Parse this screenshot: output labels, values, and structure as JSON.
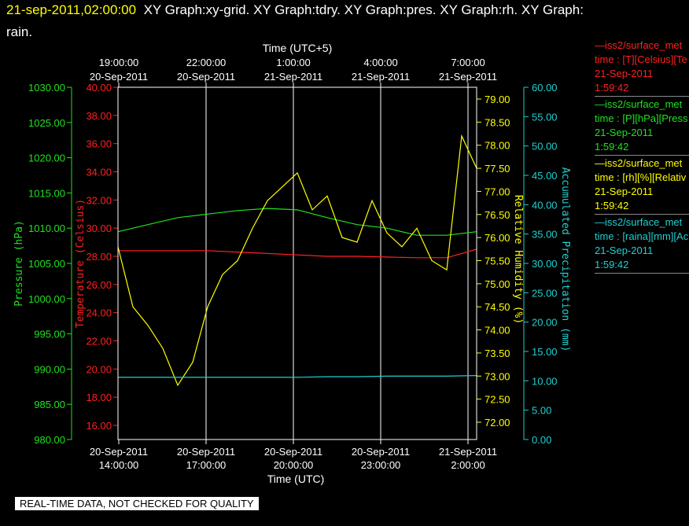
{
  "page": {
    "timestamp": "21-sep-2011,02:00:00",
    "title_rest": "XY Graph:xy-grid.  XY Graph:tdry.  XY Graph:pres.  XY Graph:rh.  XY Graph:",
    "title_wrap": "rain.",
    "quality_note": "REAL-TIME DATA, NOT CHECKED FOR QUALITY"
  },
  "legend": [
    {
      "name": "legend-temperature",
      "color": "#ff2020",
      "lines": [
        "—iss2/surface_met",
        "time : [T][Celsius][Te",
        "21-Sep-2011",
        "1:59:42"
      ]
    },
    {
      "name": "legend-pressure",
      "color": "#20e020",
      "lines": [
        "—iss2/surface_met",
        "time : [P][hPa][Press",
        "21-Sep-2011",
        "1:59:42"
      ]
    },
    {
      "name": "legend-humidity",
      "color": "#ffff00",
      "lines": [
        "—iss2/surface_met",
        "time : [rh][%][Relativ",
        "21-Sep-2011",
        "1:59:42"
      ]
    },
    {
      "name": "legend-precip",
      "color": "#20d0d0",
      "lines": [
        "—iss2/surface_met",
        "time : [raina][mm][Ac",
        "21-Sep-2011",
        "1:59:42"
      ]
    }
  ],
  "chart_data": {
    "type": "line",
    "grid": "vertical only",
    "x_bottom_label": "Time (UTC)",
    "x_top_label": "Time (UTC+5)",
    "x_range_hours_utc": [
      0,
      12
    ],
    "x_ticks_bottom": [
      {
        "date": "20-Sep-2011",
        "time": "14:00:00"
      },
      {
        "date": "20-Sep-2011",
        "time": "17:00:00"
      },
      {
        "date": "20-Sep-2011",
        "time": "20:00:00"
      },
      {
        "date": "20-Sep-2011",
        "time": "23:00:00"
      },
      {
        "date": "21-Sep-2011",
        "time": "2:00:00"
      }
    ],
    "x_ticks_top": [
      {
        "time": "19:00:00",
        "date": "20-Sep-2011"
      },
      {
        "time": "22:00:00",
        "date": "20-Sep-2011"
      },
      {
        "time": "1:00:00",
        "date": "21-Sep-2011"
      },
      {
        "time": "4:00:00",
        "date": "21-Sep-2011"
      },
      {
        "time": "7:00:00",
        "date": "21-Sep-2011"
      }
    ],
    "axes": [
      {
        "id": "pressure",
        "label": "Pressure (hPa)",
        "color": "#20e020",
        "range": [
          980,
          1030
        ],
        "ticks": [
          "980.00",
          "985.00",
          "990.00",
          "995.00",
          "1000.00",
          "1005.00",
          "1010.00",
          "1015.00",
          "1020.00",
          "1025.00",
          "1030.00"
        ]
      },
      {
        "id": "temperature",
        "label": "Temperature (Celsius)",
        "color": "#ff2020",
        "range": [
          15,
          40
        ],
        "ticks": [
          "16.00",
          "18.00",
          "20.00",
          "22.00",
          "24.00",
          "26.00",
          "28.00",
          "30.00",
          "32.00",
          "34.00",
          "36.00",
          "38.00",
          "40.00"
        ]
      },
      {
        "id": "humidity",
        "label": "Relative Humidity (%)",
        "color": "#ffff00",
        "range": [
          71.8,
          79.3
        ],
        "ticks": [
          "72.00",
          "72.50",
          "73.00",
          "73.50",
          "74.00",
          "74.50",
          "75.00",
          "75.50",
          "76.00",
          "76.50",
          "77.00",
          "77.50",
          "78.00",
          "78.50",
          "79.00"
        ]
      },
      {
        "id": "precip",
        "label": "Accumulated Precipitation (mm)",
        "color": "#20d0d0",
        "range": [
          0,
          60
        ],
        "ticks": [
          "0.00",
          "5.00",
          "10.00",
          "15.00",
          "20.00",
          "25.00",
          "30.00",
          "35.00",
          "40.00",
          "45.00",
          "50.00",
          "55.00",
          "60.00"
        ]
      }
    ],
    "series": [
      {
        "axis": "pressure",
        "color": "#20e020",
        "x": [
          0,
          1,
          2,
          3,
          4,
          5,
          6,
          7,
          8,
          9,
          10,
          11,
          12
        ],
        "y": [
          1009.5,
          1010.5,
          1011.5,
          1012,
          1012.5,
          1012.8,
          1012.6,
          1011.5,
          1010.5,
          1010,
          1009,
          1009,
          1009.5
        ]
      },
      {
        "axis": "temperature",
        "color": "#ff2020",
        "x": [
          0,
          1,
          2,
          3,
          4,
          5,
          6,
          7,
          8,
          9,
          10,
          11,
          12
        ],
        "y": [
          28.4,
          28.4,
          28.4,
          28.4,
          28.3,
          28.2,
          28.1,
          28.0,
          28.0,
          27.95,
          27.9,
          27.9,
          28.5
        ]
      },
      {
        "axis": "humidity",
        "color": "#ffff00",
        "x": [
          0,
          0.5,
          1,
          1.5,
          2,
          2.5,
          3,
          3.5,
          4,
          4.5,
          5,
          5.5,
          6,
          6.5,
          7,
          7.5,
          8,
          8.5,
          9,
          9.5,
          10,
          10.5,
          11,
          11.5,
          12
        ],
        "y": [
          75.8,
          74.5,
          74.1,
          73.6,
          72.8,
          73.3,
          74.5,
          75.2,
          75.5,
          76.2,
          76.8,
          77.1,
          77.4,
          76.6,
          76.9,
          76.0,
          75.9,
          76.8,
          76.1,
          75.8,
          76.2,
          75.5,
          75.3,
          78.2,
          77.5
        ]
      },
      {
        "axis": "precip",
        "color": "#20d0d0",
        "x": [
          0,
          1,
          2,
          3,
          4,
          5,
          6,
          7,
          8,
          9,
          10,
          11,
          12
        ],
        "y": [
          10.6,
          10.6,
          10.6,
          10.6,
          10.6,
          10.6,
          10.6,
          10.7,
          10.7,
          10.8,
          10.8,
          10.8,
          10.9
        ]
      }
    ]
  }
}
